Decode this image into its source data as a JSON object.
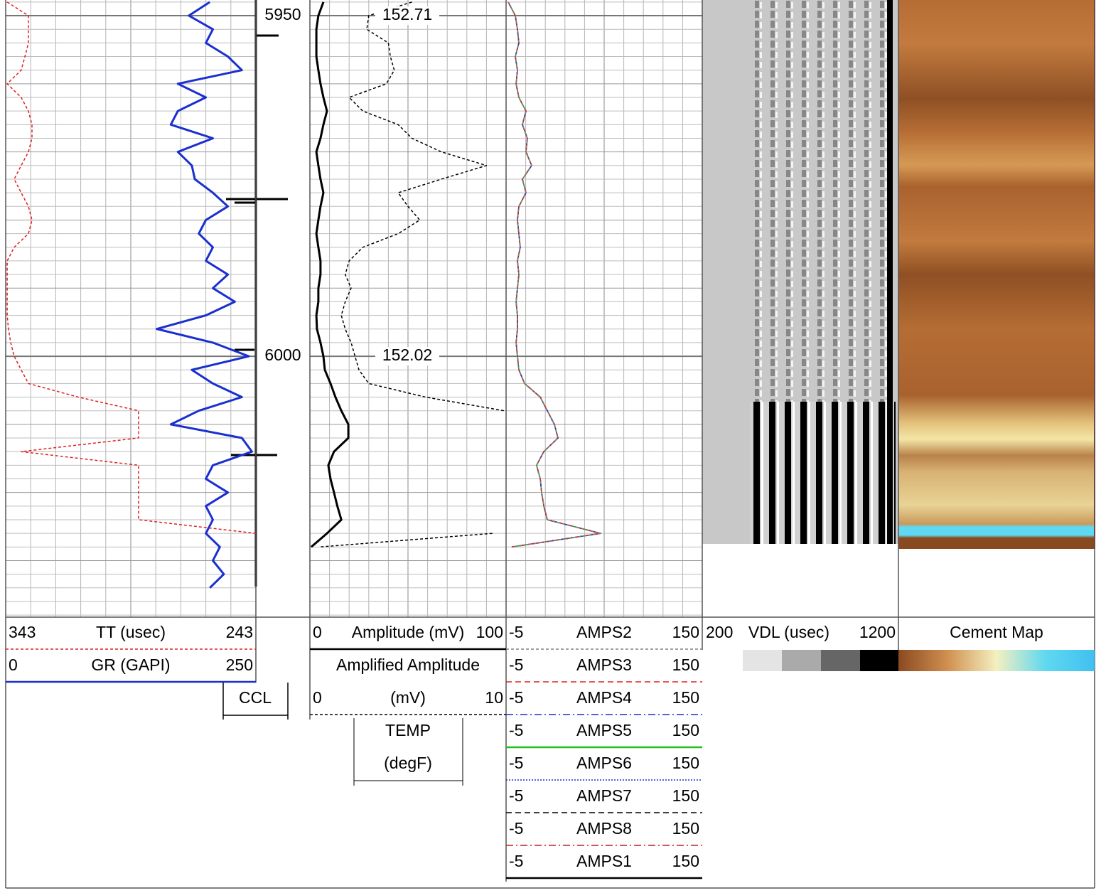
{
  "chart_data": {
    "type": "well-log",
    "ylim": [
      5947.7,
      6038.3
    ],
    "yticks": [
      5950,
      6000
    ],
    "depth": [
      5948,
      5950,
      5952,
      5954,
      5956,
      5958,
      5960,
      5962,
      5964,
      5966,
      5968,
      5970,
      5972,
      5974,
      5976,
      5978,
      5980,
      5982,
      5984,
      5986,
      5988,
      5990,
      5992,
      5994,
      5996,
      5998,
      6000,
      6002,
      6004,
      6006,
      6008,
      6010,
      6012,
      6014,
      6016,
      6018,
      6020,
      6022,
      6024,
      6026,
      6028,
      6030,
      6032,
      6034
    ],
    "tracks": [
      {
        "curves": [
          {
            "name": "TT (usec)",
            "xlim": [
              343,
              243
            ],
            "color": "#e02020",
            "dash": "4,3",
            "width": 1.5,
            "values": [
              342.4,
              333.9,
              333.9,
              333.9,
              335.3,
              336.8,
              342.4,
              336.8,
              333.9,
              332.5,
              332.5,
              333.9,
              336.8,
              339.6,
              336.8,
              333.9,
              332.5,
              333.9,
              339.6,
              342.4,
              342.4,
              342.4,
              342.4,
              342.4,
              341.9,
              341,
              339.6,
              336.8,
              333.9,
              314,
              289.9,
              289.9,
              289.9,
              336.8,
              289.9,
              289.9,
              289.9,
              289.9,
              289.9,
              243,
              null,
              null,
              null,
              null
            ]
          },
          {
            "name": "GR (GAPI)",
            "xlim": [
              0,
              250
            ],
            "color": "#1a2fd0",
            "dash": "none",
            "width": 3,
            "values": [
              204,
              183,
              207,
              200,
              222,
              236,
              172,
              200,
              172,
              165,
              207,
              172,
              186,
              189,
              207,
              222,
              200,
              193,
              207,
              200,
              222,
              207,
              229,
              200,
              151,
              207,
              243,
              186,
              207,
              236,
              193,
              165,
              236,
              246,
              207,
              200,
              222,
              200,
              207,
              200,
              214,
              207,
              218,
              204
            ]
          }
        ]
      },
      {
        "curves": [
          {
            "name": "Amplitude (mV)",
            "xlim": [
              0,
              100
            ],
            "color": "#000000",
            "dash": "none",
            "width": 3,
            "values": [
              6.9,
              4.3,
              3.3,
              3.3,
              3.3,
              4.3,
              5.4,
              6.9,
              8.7,
              6.9,
              5.4,
              3.3,
              4.3,
              5.4,
              6.9,
              5.4,
              4.3,
              3.3,
              4.3,
              5.4,
              5.4,
              4.3,
              4.3,
              3.3,
              3.6,
              5.4,
              6.9,
              7.6,
              10.5,
              13,
              16,
              19.6,
              19.6,
              12.3,
              9.4,
              10.5,
              12.3,
              14,
              16,
              8.7,
              0.7,
              null,
              null,
              null
            ]
          },
          {
            "name": "Amplified Amplitude",
            "unit": "(mV)",
            "xlim": [
              0,
              10
            ],
            "color": "#000000",
            "dash": "4,3",
            "width": 1.5,
            "values": [
              5.2,
              3.0,
              2.9,
              4.0,
              4.1,
              4.3,
              3.9,
              2.0,
              2.7,
              4.5,
              5.2,
              6.7,
              9.0,
              6.7,
              4.5,
              5.0,
              5.6,
              4.5,
              2.7,
              2.0,
              1.8,
              2.1,
              1.8,
              1.6,
              1.8,
              2.1,
              2.3,
              2.5,
              3.0,
              5.9,
              9.9,
              null,
              null,
              null,
              null,
              null,
              null,
              null,
              null,
              9.3,
              0.5,
              null,
              null,
              null
            ]
          }
        ]
      },
      {
        "curves": [
          {
            "name": "AMPS2",
            "xlim": [
              -5,
              150
            ],
            "color": "#808080",
            "dash": "4,3",
            "width": 1.5,
            "values": [
              -3.3,
              2.3,
              4,
              5.1,
              2.3,
              4,
              2.9,
              5.1,
              10.7,
              7.9,
              11.8,
              10.7,
              15.2,
              7.9,
              10.7,
              5.1,
              4,
              5.1,
              6.2,
              4,
              5.1,
              4,
              2.9,
              4,
              4,
              2.9,
              4,
              5.1,
              9.6,
              22,
              27.6,
              33.2,
              36,
              24.8,
              19.1,
              22,
              23.1,
              24.8,
              27.6,
              69.7,
              -0.5,
              null,
              null,
              null
            ]
          },
          {
            "name": "AMPS3",
            "xlim": [
              -5,
              150
            ],
            "color": "#e02020",
            "dash": "8,5",
            "width": 1.5,
            "values": [
              -3.3,
              2.3,
              4,
              5.1,
              2.3,
              4,
              2.9,
              5.1,
              10.7,
              7.9,
              11.8,
              10.7,
              15.2,
              7.9,
              10.7,
              5.1,
              4,
              5.1,
              6.2,
              4,
              5.1,
              4,
              2.9,
              4,
              4,
              2.9,
              4,
              5.1,
              9.6,
              22,
              27.6,
              33.2,
              36,
              24.8,
              19.1,
              22,
              23.1,
              24.8,
              27.6,
              69.7,
              -0.5,
              null,
              null,
              null
            ]
          },
          {
            "name": "AMPS4",
            "xlim": [
              -5,
              150
            ],
            "color": "#1a2fd0",
            "dash": "10,4,2,4",
            "width": 1.5,
            "values": [
              -3.3,
              2.3,
              4,
              5.1,
              2.3,
              4,
              2.9,
              5.1,
              10.7,
              7.9,
              11.8,
              10.7,
              15.2,
              7.9,
              10.7,
              5.1,
              4,
              5.1,
              6.2,
              4,
              5.1,
              4,
              2.9,
              4,
              4,
              2.9,
              4,
              5.1,
              9.6,
              22,
              27.6,
              33.2,
              36,
              24.8,
              19.1,
              22,
              23.1,
              24.8,
              27.6,
              69.7,
              -0.5,
              null,
              null,
              null
            ]
          },
          {
            "name": "AMPS5",
            "xlim": [
              -5,
              150
            ],
            "color": "#20c020",
            "dash": "none",
            "width": 1.5,
            "values": [
              -3.3,
              2.3,
              4,
              5.1,
              2.3,
              4,
              2.9,
              5.1,
              10.7,
              7.9,
              11.8,
              10.7,
              15.2,
              7.9,
              10.7,
              5.1,
              4,
              5.1,
              6.2,
              4,
              5.1,
              4,
              2.9,
              4,
              4,
              2.9,
              4,
              5.1,
              9.6,
              22,
              27.6,
              33.2,
              36,
              24.8,
              19.1,
              22,
              23.1,
              24.8,
              27.6,
              69.7,
              -0.5,
              null,
              null,
              null
            ]
          },
          {
            "name": "AMPS6",
            "xlim": [
              -5,
              150
            ],
            "color": "#1a2fd0",
            "dash": "2,2",
            "width": 1.5,
            "values": [
              -3.3,
              2.3,
              4,
              5.1,
              2.3,
              4,
              2.9,
              5.1,
              10.7,
              7.9,
              11.8,
              10.7,
              15.2,
              7.9,
              10.7,
              5.1,
              4,
              5.1,
              6.2,
              4,
              5.1,
              4,
              2.9,
              4,
              4,
              2.9,
              4,
              5.1,
              9.6,
              22,
              27.6,
              33.2,
              36,
              24.8,
              19.1,
              22,
              23.1,
              24.8,
              27.6,
              69.7,
              -0.5,
              null,
              null,
              null
            ]
          },
          {
            "name": "AMPS7",
            "xlim": [
              -5,
              150
            ],
            "color": "#000000",
            "dash": "8,5",
            "width": 1.5,
            "values": [
              -3.3,
              2.3,
              4,
              5.1,
              2.3,
              4,
              2.9,
              5.1,
              10.7,
              7.9,
              11.8,
              10.7,
              15.2,
              7.9,
              10.7,
              5.1,
              4,
              5.1,
              6.2,
              4,
              5.1,
              4,
              2.9,
              4,
              4,
              2.9,
              4,
              5.1,
              9.6,
              22,
              27.6,
              33.2,
              36,
              24.8,
              19.1,
              22,
              23.1,
              24.8,
              27.6,
              69.7,
              -0.5,
              null,
              null,
              null
            ]
          },
          {
            "name": "AMPS8",
            "xlim": [
              -5,
              150
            ],
            "color": "#c02020",
            "dash": "10,4,2,4",
            "width": 1.5,
            "values": [
              -3.3,
              2.3,
              4,
              5.1,
              2.3,
              4,
              2.9,
              5.1,
              10.7,
              7.9,
              11.8,
              10.7,
              15.2,
              7.9,
              10.7,
              5.1,
              4,
              5.1,
              6.2,
              4,
              5.1,
              4,
              2.9,
              4,
              4,
              2.9,
              4,
              5.1,
              9.6,
              22,
              27.6,
              33.2,
              36,
              24.8,
              19.1,
              22,
              23.1,
              24.8,
              27.6,
              69.7,
              -0.5,
              null,
              null,
              null
            ]
          },
          {
            "name": "AMPS1",
            "xlim": [
              -5,
              150
            ],
            "color": "#000000",
            "dash": "none",
            "width": 1.5,
            "values": [
              -3.3,
              2.3,
              4,
              5.1,
              2.3,
              4,
              2.9,
              5.1,
              10.7,
              7.9,
              11.8,
              10.7,
              15.2,
              7.9,
              10.7,
              5.1,
              4,
              5.1,
              6.2,
              4,
              5.1,
              4,
              2.9,
              4,
              4,
              2.9,
              4,
              5.1,
              9.6,
              22,
              27.6,
              33.2,
              36,
              24.8,
              19.1,
              22,
              23.1,
              24.8,
              27.6,
              69.7,
              -0.5,
              null,
              null,
              null
            ]
          }
        ]
      },
      {
        "name": "VDL (usec)",
        "xlim": [
          200,
          1200
        ]
      },
      {
        "name": "Cement Map"
      }
    ],
    "ccl": {
      "name": "CCL"
    },
    "temp": {
      "name": "TEMP",
      "unit": "(degF)",
      "labels": [
        {
          "depth": 5950,
          "value": 152.71
        },
        {
          "depth": 6000,
          "value": 152.02
        }
      ]
    }
  }
}
